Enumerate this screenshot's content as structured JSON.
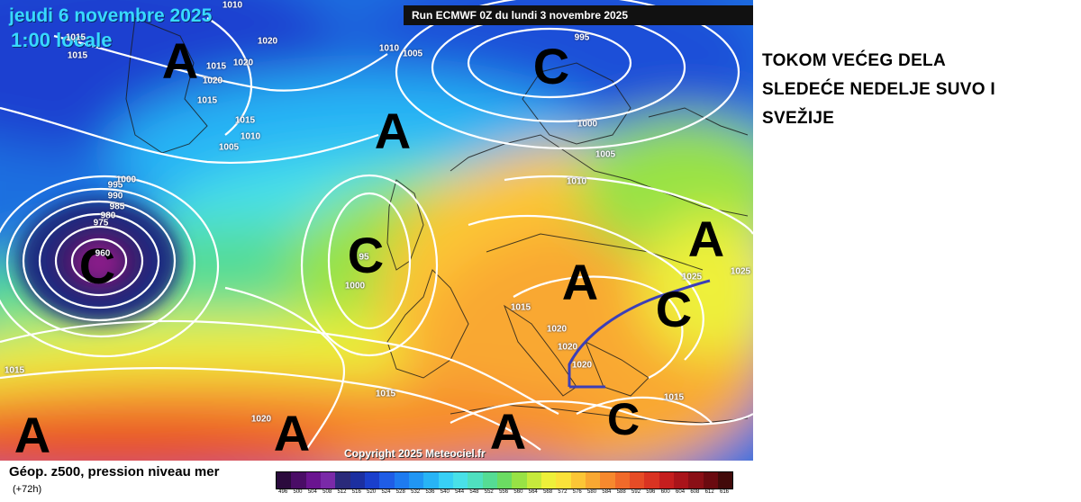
{
  "map": {
    "date": "jeudi 6 novembre 2025",
    "time": "1:00 locale",
    "run": "Run ECMWF 0Z du lundi 3 novembre 2025",
    "copyright": "Copyright 2025 Meteociel.fr"
  },
  "pressure_markers": [
    {
      "label": "A",
      "kind": "high"
    },
    {
      "label": "C",
      "kind": "low"
    },
    {
      "label": "A",
      "kind": "high"
    },
    {
      "label": "C",
      "kind": "low"
    },
    {
      "label": "C",
      "kind": "low"
    },
    {
      "label": "A",
      "kind": "high"
    },
    {
      "label": "A",
      "kind": "high"
    },
    {
      "label": "C",
      "kind": "low"
    },
    {
      "label": "A",
      "kind": "high"
    },
    {
      "label": "A",
      "kind": "high"
    },
    {
      "label": "A",
      "kind": "high"
    },
    {
      "label": "C",
      "kind": "low"
    }
  ],
  "isobar_labels": [
    "1010",
    "1020",
    "1015",
    "1015",
    "1020",
    "1015",
    "1015",
    "1010",
    "1005",
    "1010",
    "1005",
    "995",
    "1000",
    "1005",
    "1010",
    "1020",
    "1015",
    "995",
    "990",
    "985",
    "980",
    "975",
    "95",
    "1000",
    "1015",
    "1020",
    "1020",
    "1025",
    "1025",
    "1015",
    "1015",
    "1020",
    "1015",
    "1020",
    "1000",
    "960"
  ],
  "legend": {
    "title": "Géop. z500, pression niveau mer",
    "subtitle": "(+72h)",
    "ticks": [
      "496",
      "500",
      "504",
      "508",
      "512",
      "516",
      "520",
      "524",
      "528",
      "532",
      "536",
      "540",
      "544",
      "548",
      "552",
      "556",
      "560",
      "564",
      "568",
      "572",
      "576",
      "580",
      "584",
      "588",
      "592",
      "596",
      "600",
      "604",
      "608",
      "612",
      "616"
    ],
    "colors": [
      "#2b0a3d",
      "#4a0d66",
      "#6a1490",
      "#7a2aa8",
      "#2a2a7a",
      "#1c2fa0",
      "#1a3fcc",
      "#1f5de6",
      "#1e7bf0",
      "#2196f3",
      "#28b4f5",
      "#38d0f5",
      "#49e1e8",
      "#4fe0c0",
      "#55dc94",
      "#6bdc62",
      "#98e245",
      "#c6ea3c",
      "#eef03a",
      "#fbe23a",
      "#fcc636",
      "#f9a832",
      "#f6892e",
      "#f06a2a",
      "#e64c26",
      "#d93322",
      "#c51e1e",
      "#a9141a",
      "#8a0f16",
      "#6a0a10",
      "#420a0a"
    ]
  },
  "annotation": {
    "lines": [
      "TOKOM VEĆEG DELA",
      "SLEDEĆE NEDELJE SUVO I",
      "SVEŽIJE"
    ]
  }
}
